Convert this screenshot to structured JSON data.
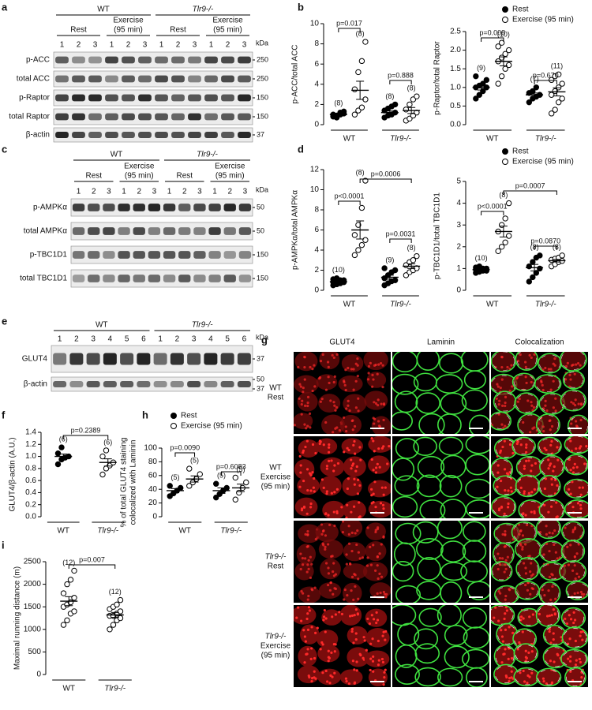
{
  "figure": {
    "blots": [
      {
        "label": "a",
        "groups": [
          "WT",
          "Tlr9-/-"
        ],
        "conditions": [
          [
            "Rest"
          ],
          [
            "Exercise",
            "(95 min)"
          ]
        ],
        "lanes": [
          "1",
          "2",
          "3"
        ],
        "unit": "kDa",
        "rows": [
          {
            "name": "p-ACC",
            "kda": [
              "250"
            ]
          },
          {
            "name": "total ACC",
            "kda": [
              "250"
            ]
          },
          {
            "name": "p-Raptor",
            "kda": [
              "150"
            ]
          },
          {
            "name": "total Raptor",
            "kda": [
              "150"
            ]
          },
          {
            "name": "β-actin",
            "kda": [
              "37"
            ]
          }
        ]
      },
      {
        "label": "c",
        "groups": [
          "WT",
          "Tlr9-/-"
        ],
        "conditions": [
          [
            "Rest"
          ],
          [
            "Exercise",
            "(95 min)"
          ]
        ],
        "lanes": [
          "1",
          "2",
          "3"
        ],
        "unit": "kDa",
        "rows": [
          {
            "name": "p-AMPKα",
            "kda": [
              "50"
            ]
          },
          {
            "name": "total AMPKα",
            "kda": [
              "50"
            ]
          },
          {
            "name": "p-TBC1D1",
            "kda": [
              "150"
            ]
          },
          {
            "name": "total TBC1D1",
            "kda": [
              "150"
            ]
          }
        ]
      },
      {
        "label": "e",
        "groups": [
          "WT",
          "Tlr9-/-"
        ],
        "lanes": [
          "1",
          "2",
          "3",
          "4",
          "5",
          "6"
        ],
        "unit": "kDa",
        "rows": [
          {
            "name": "GLUT4",
            "kda": [
              "37"
            ]
          },
          {
            "name": "β-actin",
            "kda": [
              "50",
              "37"
            ]
          }
        ]
      }
    ],
    "micrographs": {
      "label": "g",
      "columns": [
        "GLUT4",
        "Laminin",
        "Colocalization"
      ],
      "rows": [
        [
          "WT",
          "Rest"
        ],
        [
          "WT",
          "Exercise",
          "(95 min)"
        ],
        [
          "Tlr9-/-",
          "Rest"
        ],
        [
          "Tlr9-/-",
          "Exercise",
          "(95 min)"
        ]
      ]
    }
  },
  "chart_data": [
    {
      "type": "dotplot",
      "label": "b",
      "ylabel": "p-ACC/total ACC",
      "ylim": [
        0,
        10
      ],
      "yticks": [
        0,
        2,
        4,
        6,
        8,
        10
      ],
      "categories": [
        "WT",
        "Tlr9-/-"
      ],
      "series": [
        {
          "marker": "filled",
          "color": "#000000",
          "values": [
            {
              "n": "(8)",
              "points": [
                0.8,
                0.9,
                1.0,
                1.1,
                1.0,
                0.7,
                1.2,
                1.3
              ],
              "mean": 1.0,
              "sem": 0.1
            },
            {
              "n": "(8)",
              "points": [
                0.7,
                0.9,
                1.0,
                1.2,
                1.4,
                1.6,
                1.8,
                2.0
              ],
              "mean": 1.2,
              "sem": 0.15
            }
          ]
        },
        {
          "marker": "open",
          "color": "#000000",
          "values": [
            {
              "n": "(8)",
              "points": [
                1.0,
                1.4,
                1.7,
                2.5,
                3.5,
                5.2,
                6.3,
                8.2
              ],
              "mean": 3.4,
              "sem": 0.9
            },
            {
              "n": "(8)",
              "points": [
                0.4,
                0.6,
                0.9,
                1.2,
                1.5,
                2.0,
                2.5,
                2.8
              ],
              "mean": 1.4,
              "sem": 0.3
            }
          ]
        }
      ],
      "annotations": [
        "p=0.017",
        "p=0.888"
      ]
    },
    {
      "type": "dotplot",
      "ylabel": "p-Raptor/total Raptor",
      "ylim": [
        0,
        2.5
      ],
      "yticks": [
        {
          "value": 0,
          "label": "0.0"
        },
        0.5,
        {
          "value": 1,
          "label": "1.0"
        },
        1.5,
        {
          "value": 2,
          "label": "2.0"
        },
        2.5
      ],
      "categories": [
        "WT",
        "Tlr9-/-"
      ],
      "series": [
        {
          "name": "Rest",
          "marker": "filled",
          "color": "#000000",
          "values": [
            {
              "n": "(9)",
              "points": [
                0.7,
                0.8,
                0.9,
                1.0,
                1.0,
                1.05,
                1.1,
                1.2,
                1.3
              ],
              "mean": 1.0,
              "sem": 0.07
            },
            {
              "n": "(7)",
              "points": [
                0.6,
                0.7,
                0.75,
                0.8,
                0.85,
                0.9,
                1.0
              ],
              "mean": 0.8,
              "sem": 0.05
            }
          ]
        },
        {
          "name": "Exercise (95 min)",
          "marker": "open",
          "color": "#000000",
          "values": [
            {
              "n": "(10)",
              "points": [
                1.1,
                1.3,
                1.5,
                1.6,
                1.7,
                1.8,
                1.9,
                2.0,
                2.1,
                2.2
              ],
              "mean": 1.7,
              "sem": 0.12
            },
            {
              "n": "(11)",
              "points": [
                0.3,
                0.4,
                0.6,
                0.7,
                0.8,
                0.9,
                1.0,
                1.1,
                1.2,
                1.3,
                1.35
              ],
              "mean": 0.88,
              "sem": 0.11
            }
          ]
        }
      ],
      "annotations": [
        "p=0.008",
        "p=0.670"
      ]
    },
    {
      "type": "dotplot",
      "label": "d",
      "ylabel": "p-AMPKα/total AMPKα",
      "ylim": [
        0,
        12
      ],
      "yticks": [
        0,
        2,
        4,
        6,
        8,
        10,
        12
      ],
      "categories": [
        "WT",
        "Tlr9-/-"
      ],
      "series": [
        {
          "marker": "filled",
          "color": "#000000",
          "values": [
            {
              "n": "(10)",
              "points": [
                0.5,
                0.6,
                0.7,
                0.8,
                0.8,
                0.9,
                1.0,
                1.0,
                1.1,
                1.2
              ],
              "mean": 0.86,
              "sem": 0.07
            },
            {
              "n": "(9)",
              "points": [
                0.5,
                0.7,
                0.9,
                1.0,
                1.2,
                1.5,
                1.8,
                2.0,
                2.2
              ],
              "mean": 1.3,
              "sem": 0.2
            }
          ]
        },
        {
          "marker": "open",
          "color": "#000000",
          "values": [
            {
              "n": "(8)",
              "points": [
                3.5,
                4.0,
                4.5,
                5.0,
                5.5,
                6.5,
                8.2,
                10.9
              ],
              "mean": 6.0,
              "sem": 0.9
            },
            {
              "n": "(8)",
              "points": [
                1.5,
                1.8,
                2.0,
                2.2,
                2.5,
                2.8,
                3.0,
                3.4
              ],
              "mean": 2.4,
              "sem": 0.23
            }
          ]
        }
      ],
      "annotations": [
        "p<0.0001",
        "p=0.0006",
        "p=0.0031"
      ]
    },
    {
      "type": "dotplot",
      "ylabel": "p-TBC1D1/total TBC1D1",
      "ylim": [
        0,
        5
      ],
      "yticks": [
        0,
        1,
        2,
        3,
        4,
        5
      ],
      "categories": [
        "WT",
        "Tlr9-/-"
      ],
      "series": [
        {
          "name": "Rest",
          "marker": "filled",
          "color": "#000000",
          "values": [
            {
              "n": "(10)",
              "points": [
                0.8,
                0.85,
                0.9,
                0.9,
                0.95,
                0.95,
                1.0,
                1.0,
                1.05,
                1.1
              ],
              "mean": 0.95,
              "sem": 0.03
            },
            {
              "n": "(8)",
              "points": [
                0.4,
                0.6,
                0.8,
                1.0,
                1.1,
                1.3,
                1.5,
                1.6
              ],
              "mean": 1.04,
              "sem": 0.15
            }
          ]
        },
        {
          "name": "Exercise (95 min)",
          "marker": "open",
          "color": "#000000",
          "values": [
            {
              "n": "(8)",
              "points": [
                1.8,
                2.0,
                2.2,
                2.5,
                2.7,
                3.0,
                3.3,
                4.0
              ],
              "mean": 2.7,
              "sem": 0.25
            },
            {
              "n": "(8)",
              "points": [
                1.1,
                1.2,
                1.3,
                1.35,
                1.4,
                1.45,
                1.5,
                1.6
              ],
              "mean": 1.36,
              "sem": 0.06
            }
          ]
        }
      ],
      "annotations": [
        "p<0.0001",
        "p=0.0007",
        "p=0.0870"
      ]
    },
    {
      "type": "dotplot",
      "label": "f",
      "ylabel": "GLUT4/β-actin (A.U.)",
      "ylim": [
        0,
        1.4
      ],
      "yticks": [
        {
          "value": 0,
          "label": "0.0"
        },
        0.2,
        0.4,
        0.6,
        0.8,
        {
          "value": 1,
          "label": "1.0"
        },
        1.2,
        1.4
      ],
      "categories": [
        "WT",
        "Tlr9-/-"
      ],
      "series": [
        {
          "marker": "filled",
          "color": "#000000",
          "values": [
            {
              "n": "(6)",
              "points": [
                0.87,
                0.95,
                0.98,
                1.0,
                1.05,
                1.15
              ],
              "mean": 1.0,
              "sem": 0.04
            },
            null
          ]
        },
        {
          "marker": "open",
          "color": "#000000",
          "values": [
            null,
            {
              "n": "(6)",
              "points": [
                0.7,
                0.8,
                0.85,
                0.9,
                1.0,
                1.1
              ],
              "mean": 0.9,
              "sem": 0.06
            }
          ]
        }
      ],
      "annotations": [
        "p=0.2389"
      ]
    },
    {
      "type": "dotplot",
      "label": "h",
      "ylabel": [
        "% of total GLUT4 staining",
        "colocalized with Laminin"
      ],
      "ylim": [
        0,
        100
      ],
      "yticks": [
        0,
        20,
        40,
        60,
        80,
        100
      ],
      "categories": [
        "WT",
        "Tlr9-/-"
      ],
      "series": [
        {
          "name": "Rest",
          "marker": "filled",
          "color": "#000000",
          "values": [
            {
              "n": "(5)",
              "points": [
                30,
                34,
                38,
                42,
                45
              ],
              "mean": 38,
              "sem": 3
            },
            {
              "n": "(5)",
              "points": [
                28,
                33,
                38,
                42,
                48
              ],
              "mean": 38,
              "sem": 4
            }
          ]
        },
        {
          "name": "Exercise (95 min)",
          "marker": "open",
          "color": "#000000",
          "values": [
            {
              "n": "(5)",
              "points": [
                45,
                50,
                55,
                62,
                70
              ],
              "mean": 55,
              "sem": 4.5
            },
            {
              "n": "(5)",
              "points": [
                25,
                35,
                42,
                50,
                57
              ],
              "mean": 42,
              "sem": 5.5
            }
          ]
        }
      ],
      "annotations": [
        "p=0.0090",
        "p=0.6083"
      ]
    },
    {
      "type": "dotplot",
      "label": "i",
      "ylabel": "Maximal running distance (m)",
      "ylim": [
        0,
        2500
      ],
      "yticks": [
        0,
        500,
        1000,
        1500,
        2000,
        2500
      ],
      "categories": [
        "WT",
        "Tlr9-/-"
      ],
      "series": [
        {
          "marker": "open",
          "color": "#000000",
          "values": [
            {
              "n": "(12)",
              "points": [
                1100,
                1200,
                1350,
                1400,
                1500,
                1550,
                1600,
                1700,
                1800,
                2000,
                2100,
                2300
              ],
              "mean": 1625,
              "sem": 100
            },
            {
              "n": "(12)",
              "points": [
                1000,
                1100,
                1200,
                1250,
                1300,
                1300,
                1350,
                1400,
                1450,
                1500,
                1550,
                1650
              ],
              "mean": 1320,
              "sem": 55
            }
          ]
        }
      ],
      "annotations": [
        "p=0.007"
      ]
    }
  ]
}
